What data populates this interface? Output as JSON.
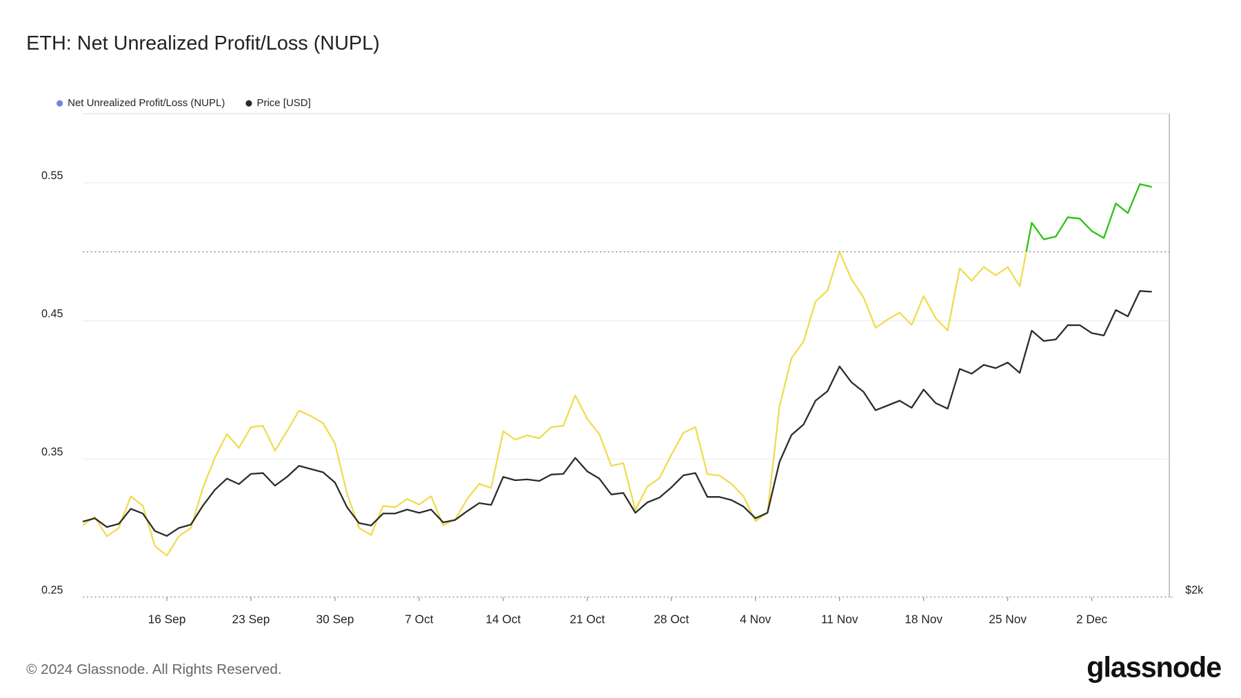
{
  "chart_data": {
    "type": "line",
    "title": "ETH: Net Unrealized Profit/Loss (NUPL)",
    "footer": "© 2024 Glassnode. All Rights Reserved.",
    "brand": "glassnode",
    "categories": [
      null,
      null,
      null,
      null,
      null,
      null,
      null,
      "16 Sep",
      null,
      null,
      null,
      null,
      null,
      null,
      "23 Sep",
      null,
      null,
      null,
      null,
      null,
      null,
      "30 Sep",
      null,
      null,
      null,
      null,
      null,
      null,
      "7 Oct",
      null,
      null,
      null,
      null,
      null,
      null,
      "14 Oct",
      null,
      null,
      null,
      null,
      null,
      null,
      "21 Oct",
      null,
      null,
      null,
      null,
      null,
      null,
      "28 Oct",
      null,
      null,
      null,
      null,
      null,
      null,
      "4 Nov",
      null,
      null,
      null,
      null,
      null,
      null,
      "11 Nov",
      null,
      null,
      null,
      null,
      null,
      null,
      "18 Nov",
      null,
      null,
      null,
      null,
      null,
      null,
      "25 Nov",
      null,
      null,
      null,
      null,
      null,
      null,
      "2 Dec",
      null,
      null,
      null,
      null,
      null
    ],
    "ylim": [
      0.25,
      0.6
    ],
    "yticks": [
      0.25,
      0.35,
      0.45,
      0.55
    ],
    "y2lim": [
      2000,
      6000
    ],
    "y2scale": "log",
    "y2ticks": [
      {
        "value": 2000,
        "label": "$2k"
      }
    ],
    "grid": true,
    "reference_line": 0.5,
    "threshold_color": "#2ac41c",
    "legend": "top-left",
    "series": [
      {
        "name": "Net Unrealized Profit/Loss (NUPL)",
        "color": "#f0dc4e",
        "legend_color": "#6b84e8",
        "values": [
          0.302,
          0.308,
          0.294,
          0.3,
          0.323,
          0.316,
          0.287,
          0.28,
          0.294,
          0.3,
          0.329,
          0.351,
          0.368,
          0.358,
          0.373,
          0.374,
          0.356,
          0.37,
          0.385,
          0.381,
          0.376,
          0.361,
          0.325,
          0.3,
          0.295,
          0.316,
          0.315,
          0.321,
          0.317,
          0.323,
          0.302,
          0.306,
          0.321,
          0.332,
          0.329,
          0.37,
          0.364,
          0.367,
          0.365,
          0.373,
          0.374,
          0.396,
          0.379,
          0.368,
          0.345,
          0.347,
          0.313,
          0.33,
          0.336,
          0.353,
          0.369,
          0.373,
          0.339,
          0.338,
          0.332,
          0.323,
          0.305,
          0.311,
          0.388,
          0.423,
          0.435,
          0.464,
          0.472,
          0.5,
          0.48,
          0.467,
          0.445,
          0.451,
          0.456,
          0.447,
          0.468,
          0.452,
          0.443,
          0.488,
          0.479,
          0.489,
          0.483,
          0.489,
          0.475,
          0.521,
          0.509,
          0.511,
          0.525,
          0.524,
          0.515,
          0.51,
          0.535,
          0.528,
          0.549,
          0.547
        ]
      },
      {
        "name": "Price [USD]",
        "color": "#2b2b2b",
        "axis": "y2",
        "values": [
          2374,
          2392,
          2345,
          2362,
          2444,
          2418,
          2324,
          2298,
          2340,
          2358,
          2462,
          2552,
          2618,
          2585,
          2646,
          2651,
          2576,
          2628,
          2695,
          2675,
          2656,
          2594,
          2453,
          2366,
          2353,
          2418,
          2418,
          2440,
          2422,
          2440,
          2370,
          2383,
          2431,
          2476,
          2466,
          2628,
          2608,
          2613,
          2604,
          2642,
          2646,
          2744,
          2661,
          2618,
          2525,
          2534,
          2422,
          2480,
          2507,
          2566,
          2637,
          2651,
          2511,
          2511,
          2493,
          2457,
          2392,
          2422,
          2719,
          2891,
          2960,
          3125,
          3193,
          3378,
          3258,
          3188,
          3058,
          3091,
          3125,
          3075,
          3205,
          3108,
          3069,
          3359,
          3323,
          3390,
          3365,
          3408,
          3329,
          3664,
          3579,
          3592,
          3710,
          3710,
          3644,
          3624,
          3840,
          3785,
          4010,
          4003
        ]
      }
    ]
  }
}
